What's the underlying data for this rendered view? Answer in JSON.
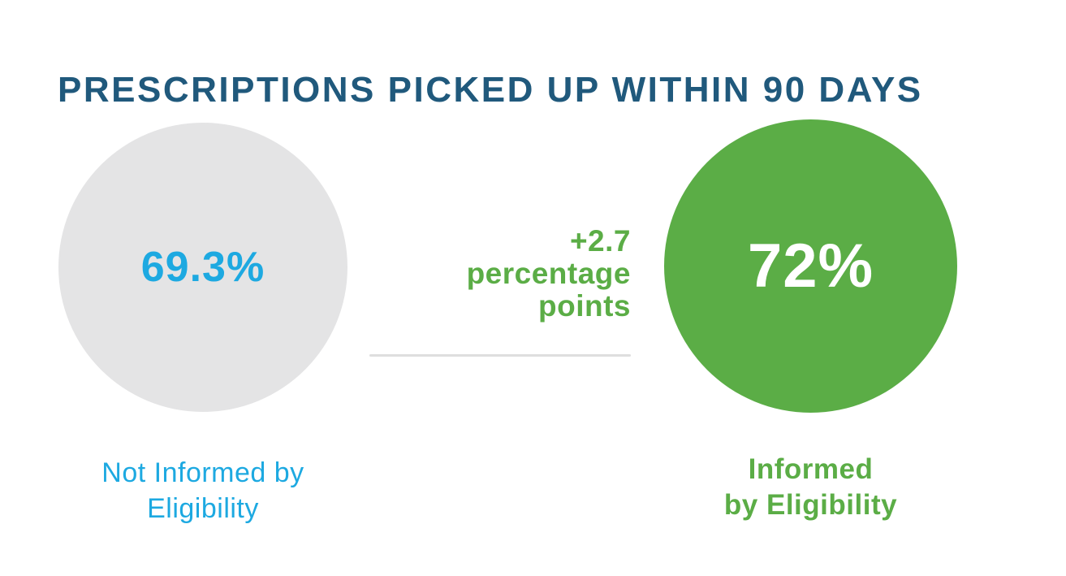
{
  "title": "PRESCRIPTIONS PICKED UP WITHIN 90 DAYS",
  "left_circle": {
    "value": "69.3%",
    "label_line1": "Not Informed by",
    "label_line2": "Eligibility"
  },
  "right_circle": {
    "value": "72%",
    "label_line1": "Informed",
    "label_line2": "by Eligibility"
  },
  "annotation": {
    "line1": "+2.7",
    "line2": "percentage",
    "line3": "points",
    "full_text": "+2.7 percentage points"
  },
  "colors": {
    "title_blue": "#20597c",
    "accent_cyan": "#1da9e1",
    "accent_green": "#5bad46",
    "gray_circle": "#e4e4e5",
    "divider_gray": "#dedede",
    "value_on_green": "#ffffff"
  },
  "chart_data": {
    "type": "bar",
    "variant": "proportional-area-circle-comparison",
    "title": "PRESCRIPTIONS PICKED UP WITHIN 90 DAYS",
    "categories": [
      "Not Informed by Eligibility",
      "Informed by Eligibility"
    ],
    "values": [
      69.3,
      72
    ],
    "value_labels": [
      "69.3%",
      "72%"
    ],
    "unit": "percent",
    "annotation": "+2.7 percentage points",
    "delta": 2.7,
    "category_colors": [
      "#e4e4e5",
      "#5bad46"
    ],
    "value_label_colors": [
      "#1da9e1",
      "#ffffff"
    ],
    "category_label_colors": [
      "#1da9e1",
      "#5bad46"
    ],
    "legend": "none",
    "grid": "off"
  }
}
